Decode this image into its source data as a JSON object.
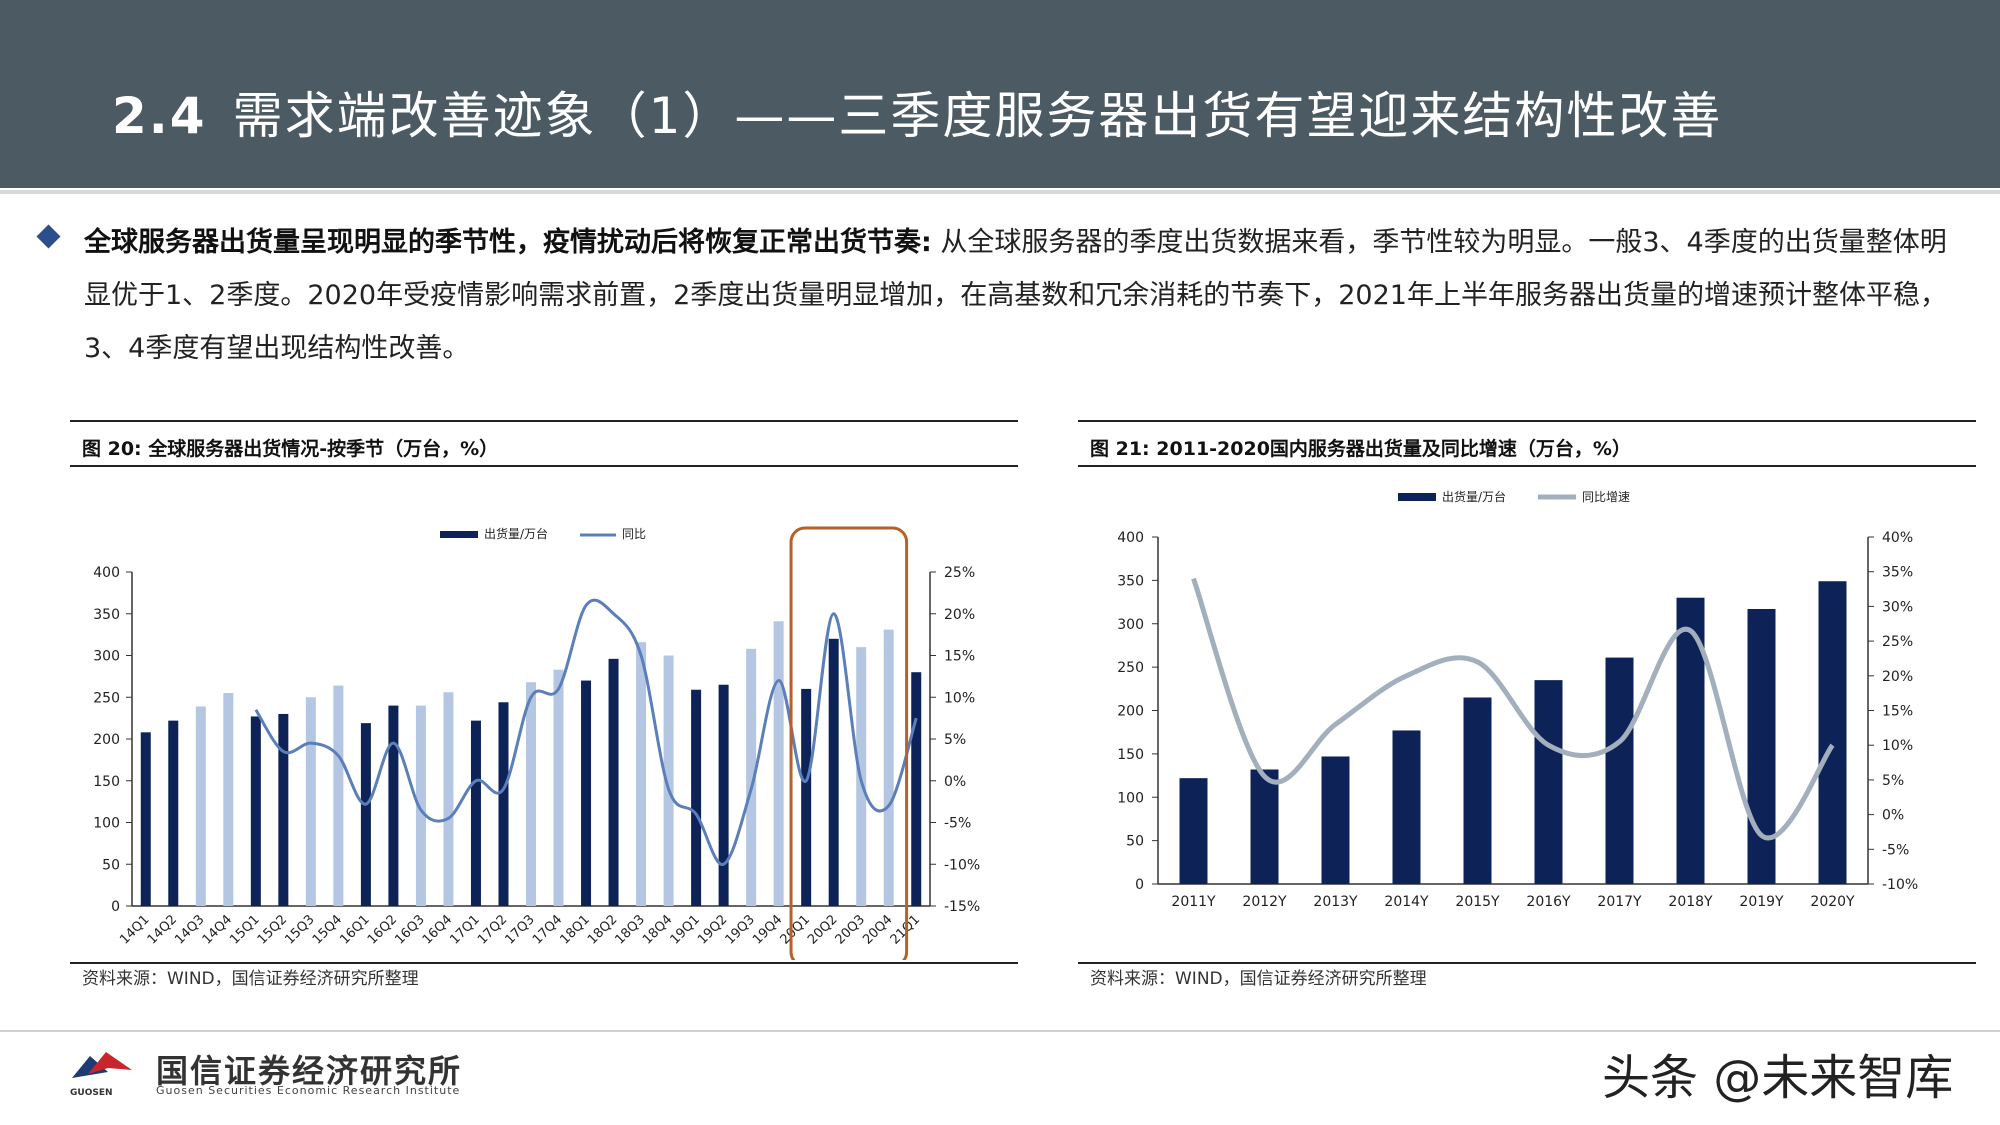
{
  "header": {
    "section_number": "2.4",
    "title": "需求端改善迹象（1）——三季度服务器出货有望迎来结构性改善"
  },
  "bullet": {
    "bold_lead": "全球服务器出货量呈现明显的季节性，疫情扰动后将恢复正常出货节奏:",
    "body": " 从全球服务器的季度出货数据来看，季节性较为明显。一般3、4季度的出货量整体明显优于1、2季度。2020年受疫情影响需求前置，2季度出货量明显增加，在高基数和冗余消耗的节奏下，2021年上半年服务器出货量的增速预计整体平稳，3、4季度有望出现结构性改善。"
  },
  "chart_data": [
    {
      "type": "bar",
      "figure_label": "图 20:",
      "title": "全球服务器出货情况-按季节（万台，%）",
      "categories": [
        "14Q1",
        "14Q2",
        "14Q3",
        "14Q4",
        "15Q1",
        "15Q2",
        "15Q3",
        "15Q4",
        "16Q1",
        "16Q2",
        "16Q3",
        "16Q4",
        "17Q1",
        "17Q2",
        "17Q3",
        "17Q4",
        "18Q1",
        "18Q2",
        "18Q3",
        "18Q4",
        "19Q1",
        "19Q2",
        "19Q3",
        "19Q4",
        "20Q1",
        "20Q2",
        "20Q3",
        "20Q4",
        "21Q1"
      ],
      "series": [
        {
          "name": "出货量/万台",
          "axis": "left",
          "values": [
            208,
            222,
            239,
            255,
            227,
            230,
            250,
            264,
            219,
            240,
            240,
            256,
            222,
            244,
            268,
            283,
            270,
            296,
            316,
            300,
            259,
            265,
            308,
            341,
            260,
            320,
            310,
            331,
            280
          ]
        },
        {
          "name": "同比",
          "axis": "right",
          "values": [
            null,
            null,
            null,
            null,
            8.5,
            3.5,
            4.5,
            3,
            -2.8,
            4.5,
            -3.5,
            -4.5,
            0,
            -1,
            10,
            11,
            21,
            20,
            15,
            -1,
            -4,
            -10,
            -1,
            12,
            0,
            20,
            0,
            -3,
            7.5
          ]
        }
      ],
      "ylim_left": [
        0,
        400
      ],
      "yticks_left": [
        "0",
        "50",
        "100",
        "150",
        "200",
        "250",
        "300",
        "350",
        "400"
      ],
      "ylim_right": [
        -15,
        25
      ],
      "yticks_right": [
        "-15%",
        "-10%",
        "-5%",
        "0%",
        "5%",
        "10%",
        "15%",
        "20%",
        "25%"
      ],
      "legend": [
        "出货量/万台",
        "同比"
      ],
      "legend_position": "top",
      "highlight_categories": [
        "20Q1",
        "20Q2",
        "20Q3",
        "20Q4",
        "21Q1"
      ],
      "source": "资料来源：WIND，国信证券经济研究所整理",
      "colors": {
        "dark_bar": "#0d2358",
        "light_bar": "#b5c6e2",
        "line": "#5b7fb9",
        "highlight": "#b5622a"
      }
    },
    {
      "type": "bar",
      "figure_label": "图 21:",
      "title": "2011-2020国内服务器出货量及同比增速（万台，%）",
      "categories": [
        "2011Y",
        "2012Y",
        "2013Y",
        "2014Y",
        "2015Y",
        "2016Y",
        "2017Y",
        "2018Y",
        "2019Y",
        "2020Y"
      ],
      "series": [
        {
          "name": "出货量/万台",
          "axis": "left",
          "values": [
            122,
            132,
            147,
            177,
            215,
            235,
            261,
            330,
            317,
            349
          ]
        },
        {
          "name": "同比增速",
          "axis": "right",
          "values": [
            34,
            5.5,
            13,
            20,
            22,
            10,
            10.5,
            26.5,
            -3,
            10
          ]
        }
      ],
      "ylim_left": [
        0,
        400
      ],
      "yticks_left": [
        "0",
        "50",
        "100",
        "150",
        "200",
        "250",
        "300",
        "350",
        "400"
      ],
      "ylim_right": [
        -10,
        40
      ],
      "yticks_right": [
        "-10%",
        "-5%",
        "0%",
        "5%",
        "10%",
        "15%",
        "20%",
        "25%",
        "30%",
        "35%",
        "40%"
      ],
      "legend": [
        "出货量/万台",
        "同比增速"
      ],
      "legend_position": "top",
      "source": "资料来源：WIND，国信证券经济研究所整理",
      "colors": {
        "bar": "#0d2358",
        "line": "#a3afbd"
      }
    }
  ],
  "footer": {
    "logo_cn": "国信证券经济研究所",
    "logo_en": "Guosen Securities Economic Research Institute",
    "logo_brand": "GUOSEN",
    "watermark": "头条 @未来智库"
  }
}
